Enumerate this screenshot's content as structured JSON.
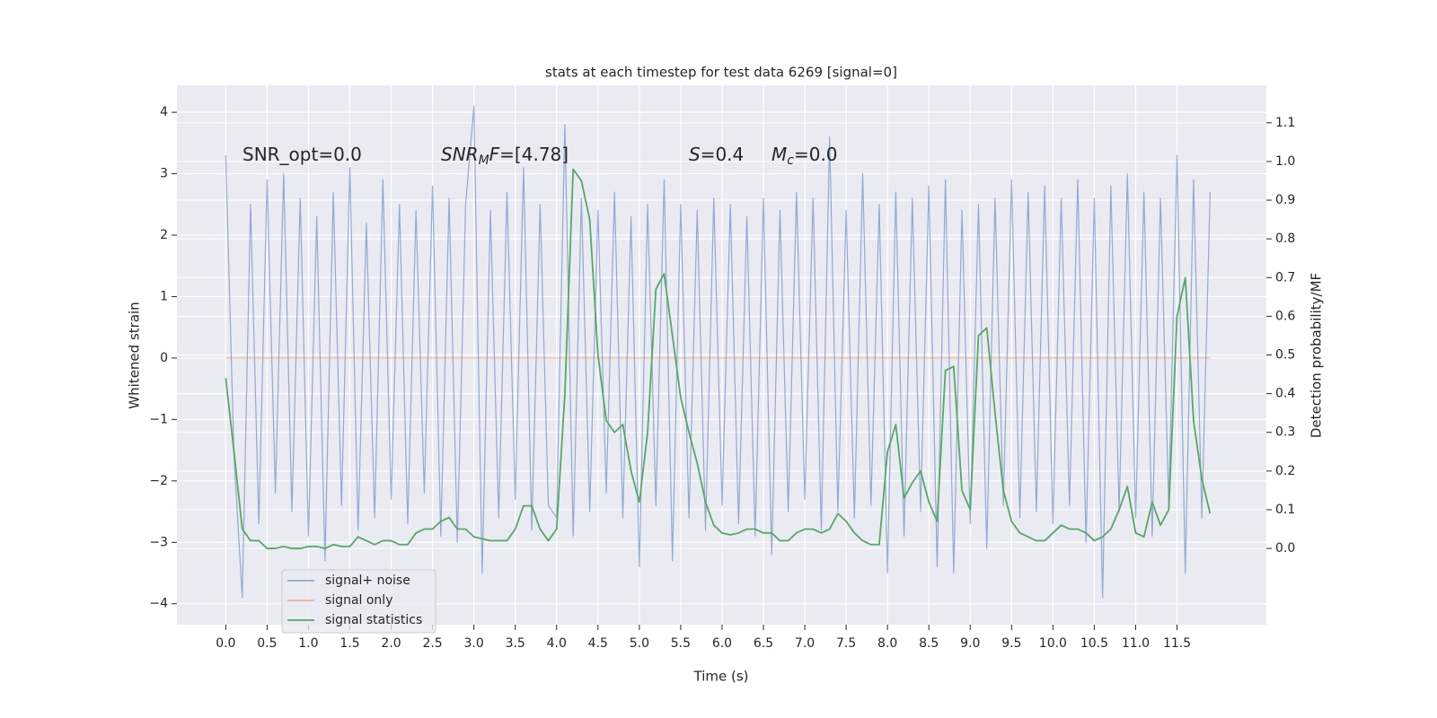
{
  "chart_data": {
    "type": "line",
    "title": "stats at each timestep for test data 6269 [signal=0]",
    "xlabel": "Time (s)",
    "ylabel": "Whitened strain",
    "y2label": "Detection probability/MF",
    "annotations": [
      [
        {
          "text": "SNR_opt=0.0"
        }
      ],
      [
        {
          "text": "SNR",
          "style": "italic"
        },
        {
          "text": "M",
          "style": "italic-sub"
        },
        {
          "text": "F",
          "style": "italic"
        },
        {
          "text": "=[4.78]"
        }
      ],
      [
        {
          "text": "S",
          "style": "italic"
        },
        {
          "text": "=0.4"
        }
      ],
      [
        {
          "text": "M",
          "style": "italic"
        },
        {
          "text": "c",
          "style": "italic-sub"
        },
        {
          "text": "=0.0"
        }
      ]
    ],
    "x": [
      0,
      0.1,
      0.2,
      0.3,
      0.4,
      0.5,
      0.6,
      0.7,
      0.8,
      0.9,
      1,
      1.1,
      1.2,
      1.3,
      1.4,
      1.5,
      1.6,
      1.7,
      1.8,
      1.9,
      2,
      2.1,
      2.2,
      2.3,
      2.4,
      2.5,
      2.6,
      2.7,
      2.8,
      2.9,
      3,
      3.1,
      3.2,
      3.3,
      3.4,
      3.5,
      3.6,
      3.7,
      3.8,
      3.9,
      4,
      4.1,
      4.2,
      4.3,
      4.4,
      4.5,
      4.6,
      4.7,
      4.8,
      4.9,
      5,
      5.1,
      5.2,
      5.3,
      5.4,
      5.5,
      5.6,
      5.7,
      5.8,
      5.9,
      6,
      6.1,
      6.2,
      6.3,
      6.4,
      6.5,
      6.6,
      6.7,
      6.8,
      6.9,
      7,
      7.1,
      7.2,
      7.3,
      7.4,
      7.5,
      7.6,
      7.7,
      7.8,
      7.9,
      8,
      8.1,
      8.2,
      8.3,
      8.4,
      8.5,
      8.6,
      8.7,
      8.8,
      8.9,
      9,
      9.1,
      9.2,
      9.3,
      9.4,
      9.5,
      9.6,
      9.7,
      9.8,
      9.9,
      10,
      10.1,
      10.2,
      10.3,
      10.4,
      10.5,
      10.6,
      10.7,
      10.8,
      10.9,
      11,
      11.1,
      11.2,
      11.3,
      11.4,
      11.5,
      11.6,
      11.7,
      11.8,
      11.9
    ],
    "series": [
      {
        "name": "signal+ noise",
        "color": "#4c72b0",
        "alpha": 0.55,
        "values": [
          3.3,
          -1.6,
          -3.9,
          2.5,
          -2.7,
          2.9,
          -2.2,
          3.0,
          -2.5,
          2.6,
          -2.9,
          2.3,
          -3.3,
          2.7,
          -2.4,
          3.1,
          -2.8,
          2.2,
          -2.6,
          2.9,
          -2.3,
          2.5,
          -2.7,
          2.4,
          -2.2,
          2.8,
          -2.9,
          2.6,
          -3.0,
          2.5,
          4.1,
          -3.5,
          2.4,
          -2.6,
          2.7,
          -2.3,
          3.1,
          -2.8,
          2.5,
          -2.4,
          -2.6,
          3.8,
          -2.9,
          2.6,
          -2.5,
          2.4,
          -2.2,
          2.7,
          -2.6,
          2.3,
          -3.4,
          2.5,
          -2.4,
          2.9,
          -3.3,
          2.5,
          -2.6,
          2.4,
          -2.8,
          2.6,
          -2.4,
          2.5,
          -2.7,
          2.3,
          -2.9,
          2.6,
          -3.2,
          2.4,
          -2.5,
          2.7,
          -2.3,
          2.6,
          -2.8,
          3.6,
          -2.5,
          2.4,
          -2.6,
          3.0,
          -2.4,
          2.5,
          -3.5,
          2.7,
          -2.9,
          2.6,
          -2.5,
          2.8,
          -3.4,
          2.9,
          -3.5,
          2.4,
          -2.7,
          2.5,
          -3.1,
          2.6,
          -2.4,
          2.9,
          -2.6,
          2.7,
          -2.5,
          2.8,
          -2.7,
          2.6,
          -2.4,
          2.9,
          -3.0,
          2.6,
          -3.9,
          2.8,
          -2.5,
          3.0,
          -2.6,
          2.7,
          -2.9,
          2.6,
          -2.4,
          3.3,
          -3.5,
          2.9,
          -2.6,
          2.7
        ]
      },
      {
        "name": "signal only",
        "color": "#dd8452",
        "alpha": 0.55,
        "values": [
          0,
          0,
          0,
          0,
          0,
          0,
          0,
          0,
          0,
          0,
          0,
          0,
          0,
          0,
          0,
          0,
          0,
          0,
          0,
          0,
          0,
          0,
          0,
          0,
          0,
          0,
          0,
          0,
          0,
          0,
          0,
          0,
          0,
          0,
          0,
          0,
          0,
          0,
          0,
          0,
          0,
          0,
          0,
          0,
          0,
          0,
          0,
          0,
          0,
          0,
          0,
          0,
          0,
          0,
          0,
          0,
          0,
          0,
          0,
          0,
          0,
          0,
          0,
          0,
          0,
          0,
          0,
          0,
          0,
          0,
          0,
          0,
          0,
          0,
          0,
          0,
          0,
          0,
          0,
          0,
          0,
          0,
          0,
          0,
          0,
          0,
          0,
          0,
          0,
          0,
          0,
          0,
          0,
          0,
          0,
          0,
          0,
          0,
          0,
          0,
          0,
          0,
          0,
          0,
          0,
          0,
          0,
          0,
          0,
          0,
          0,
          0,
          0,
          0,
          0,
          0,
          0,
          0,
          0,
          0
        ]
      },
      {
        "name": "signal statistics",
        "color": "#55a868",
        "alpha": 1,
        "axis": "y2",
        "values": [
          0.44,
          0.25,
          0.05,
          0.02,
          0.02,
          0.0,
          0.0,
          0.005,
          0.0,
          0.0,
          0.005,
          0.005,
          0.0,
          0.01,
          0.005,
          0.005,
          0.03,
          0.02,
          0.01,
          0.02,
          0.02,
          0.01,
          0.01,
          0.04,
          0.05,
          0.05,
          0.07,
          0.08,
          0.05,
          0.05,
          0.03,
          0.025,
          0.02,
          0.02,
          0.02,
          0.05,
          0.11,
          0.11,
          0.05,
          0.02,
          0.05,
          0.4,
          0.98,
          0.95,
          0.85,
          0.5,
          0.33,
          0.3,
          0.32,
          0.2,
          0.12,
          0.3,
          0.67,
          0.71,
          0.55,
          0.39,
          0.3,
          0.22,
          0.12,
          0.06,
          0.04,
          0.035,
          0.04,
          0.05,
          0.05,
          0.04,
          0.04,
          0.02,
          0.02,
          0.04,
          0.05,
          0.05,
          0.04,
          0.05,
          0.09,
          0.07,
          0.04,
          0.02,
          0.01,
          0.01,
          0.25,
          0.32,
          0.13,
          0.17,
          0.2,
          0.12,
          0.07,
          0.46,
          0.47,
          0.15,
          0.1,
          0.55,
          0.57,
          0.35,
          0.15,
          0.07,
          0.04,
          0.03,
          0.02,
          0.02,
          0.04,
          0.06,
          0.05,
          0.05,
          0.04,
          0.02,
          0.03,
          0.05,
          0.1,
          0.16,
          0.04,
          0.03,
          0.12,
          0.06,
          0.1,
          0.6,
          0.7,
          0.33,
          0.18,
          0.09
        ]
      }
    ],
    "xlim": [
      -0.59,
      12.58
    ],
    "xticks": [
      {
        "value": 0,
        "label": "0.0"
      },
      0.5,
      {
        "value": 1,
        "label": "1.0"
      },
      1.5,
      {
        "value": 2,
        "label": "2.0"
      },
      2.5,
      {
        "value": 3,
        "label": "3.0"
      },
      3.5,
      {
        "value": 4,
        "label": "4.0"
      },
      4.5,
      {
        "value": 5,
        "label": "5.0"
      },
      5.5,
      {
        "value": 6,
        "label": "6.0"
      },
      6.5,
      {
        "value": 7,
        "label": "7.0"
      },
      7.5,
      {
        "value": 8,
        "label": "8.0"
      },
      8.5,
      {
        "value": 9,
        "label": "9.0"
      },
      9.5,
      {
        "value": 10,
        "label": "10.0"
      },
      10.5,
      {
        "value": 11,
        "label": "11.0"
      },
      11.5
    ],
    "ylim": [
      -4.34,
      4.44
    ],
    "yticks": [
      {
        "value": -4,
        "label": "−4"
      },
      {
        "value": -3,
        "label": "−3"
      },
      {
        "value": -2,
        "label": "−2"
      },
      {
        "value": -1,
        "label": "−1"
      },
      0,
      1,
      2,
      3,
      4
    ],
    "y2lim": [
      -0.197,
      1.197
    ],
    "y2ticks": [
      {
        "value": 0,
        "label": "0.0"
      },
      0.1,
      0.2,
      0.3,
      0.4,
      0.5,
      0.6,
      0.7,
      0.8,
      0.9,
      {
        "value": 1,
        "label": "1.0"
      },
      1.1
    ],
    "grid": true,
    "legend": "lower left"
  }
}
